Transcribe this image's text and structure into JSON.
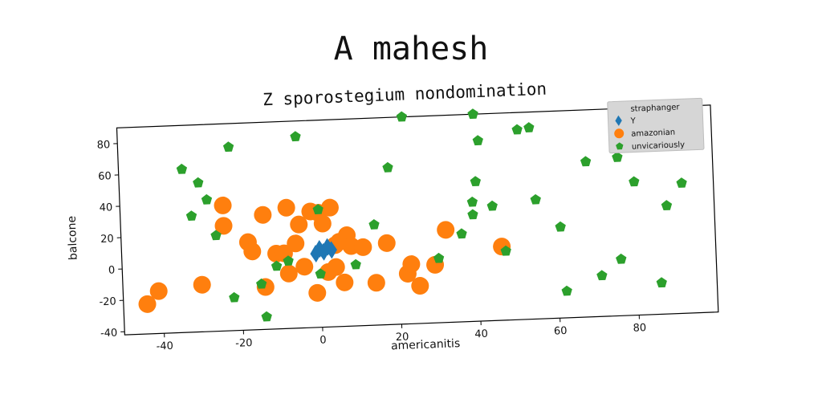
{
  "suptitle": "A mahesh",
  "chart_data": {
    "type": "scatter",
    "title": "Z sporostegium nondomination",
    "xlabel": "americanitis",
    "ylabel": "balcone",
    "xlim": [
      -50,
      100
    ],
    "ylim": [
      -42,
      90
    ],
    "xticks": [
      -40,
      -20,
      0,
      20,
      40,
      60,
      80
    ],
    "yticks": [
      -40,
      -20,
      0,
      20,
      40,
      60,
      80
    ],
    "grid": false,
    "legend": {
      "title": "straphanger",
      "placement": "top-right"
    },
    "series": [
      {
        "name": "Y",
        "marker": "diamond",
        "color": "#1f77b4",
        "points": [
          [
            0,
            8
          ],
          [
            1,
            6
          ],
          [
            2,
            9
          ],
          [
            -1,
            5
          ],
          [
            3,
            7
          ]
        ]
      },
      {
        "name": "amazonian",
        "marker": "circle",
        "color": "#ff7f0e",
        "points": [
          [
            -44,
            -23
          ],
          [
            -41,
            -15
          ],
          [
            -30,
            -12
          ],
          [
            -24,
            38
          ],
          [
            -24,
            25
          ],
          [
            -18,
            14
          ],
          [
            -17,
            8
          ],
          [
            -14,
            31
          ],
          [
            -14,
            -15
          ],
          [
            -11,
            6
          ],
          [
            -9,
            6
          ],
          [
            -8,
            35
          ],
          [
            -8,
            -7
          ],
          [
            -6,
            12
          ],
          [
            -5,
            24
          ],
          [
            -4,
            -3
          ],
          [
            -2,
            32
          ],
          [
            -1,
            -20
          ],
          [
            0,
            31
          ],
          [
            1,
            24
          ],
          [
            2,
            -7
          ],
          [
            3,
            34
          ],
          [
            4,
            10
          ],
          [
            4,
            -4
          ],
          [
            5,
            12
          ],
          [
            6,
            -14
          ],
          [
            7,
            16
          ],
          [
            8,
            9
          ],
          [
            11,
            8
          ],
          [
            14,
            -15
          ],
          [
            17,
            10
          ],
          [
            22,
            -10
          ],
          [
            23,
            -4
          ],
          [
            25,
            -18
          ],
          [
            29,
            -5
          ],
          [
            32,
            17
          ],
          [
            46,
            5
          ]
        ]
      },
      {
        "name": "unvicariously",
        "marker": "pentagon",
        "color": "#2ca02c",
        "points": [
          [
            -34,
            62
          ],
          [
            -30,
            53
          ],
          [
            -28,
            42
          ],
          [
            -32,
            32
          ],
          [
            -26,
            19
          ],
          [
            -22,
            75
          ],
          [
            -22,
            -21
          ],
          [
            -15,
            -13
          ],
          [
            -14,
            -34
          ],
          [
            -11,
            -2
          ],
          [
            -8,
            1
          ],
          [
            -5,
            80
          ],
          [
            0,
            33
          ],
          [
            0,
            -8
          ],
          [
            9,
            -3
          ],
          [
            14,
            22
          ],
          [
            18,
            58
          ],
          [
            22,
            90
          ],
          [
            30,
            -1
          ],
          [
            36,
            14
          ],
          [
            39,
            34
          ],
          [
            39,
            26
          ],
          [
            40,
            47
          ],
          [
            40,
            90
          ],
          [
            41,
            73
          ],
          [
            44,
            31
          ],
          [
            47,
            2
          ],
          [
            51,
            79
          ],
          [
            54,
            80
          ],
          [
            55,
            34
          ],
          [
            61,
            16
          ],
          [
            62,
            -25
          ],
          [
            68,
            57
          ],
          [
            71,
            -16
          ],
          [
            76,
            59
          ],
          [
            76,
            -6
          ],
          [
            80,
            43
          ],
          [
            86,
            -22
          ],
          [
            88,
            27
          ],
          [
            92,
            41
          ]
        ]
      }
    ]
  }
}
